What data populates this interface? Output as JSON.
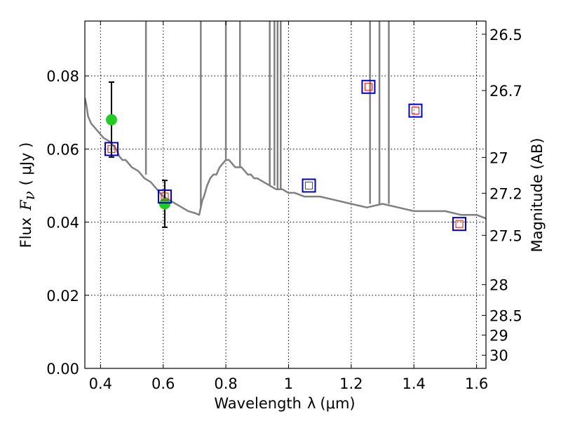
{
  "chart_data": {
    "type": "scatter",
    "xlabel_prefix": "Wavelength",
    "xlabel_symbol": "λ",
    "xlabel_units": "(μm)",
    "ylabel_prefix": "Flux",
    "ylabel_symbol": "F",
    "ylabel_subscript": "ν",
    "ylabel_units": "( μJy )",
    "y2label": "Magnitude (AB)",
    "xlim": [
      0.35,
      1.63
    ],
    "ylim": [
      0.0,
      0.095
    ],
    "grid": true,
    "x_ticks": [
      0.4,
      0.6,
      0.8,
      1.0,
      1.2,
      1.4,
      1.6
    ],
    "x_tick_labels": [
      "0.4",
      "0.6",
      "0.8",
      "1",
      "1.2",
      "1.4",
      "1.6"
    ],
    "y_ticks": [
      0.0,
      0.02,
      0.04,
      0.06,
      0.08
    ],
    "y_tick_labels": [
      "0.00",
      "0.02",
      "0.04",
      "0.06",
      "0.08"
    ],
    "y2_ticks": [
      {
        "label": "26.5",
        "flux": 0.0914
      },
      {
        "label": "26.7",
        "flux": 0.076
      },
      {
        "label": "27",
        "flux": 0.0577
      },
      {
        "label": "27.2",
        "flux": 0.0479
      },
      {
        "label": "27.5",
        "flux": 0.0364
      },
      {
        "label": "28",
        "flux": 0.0229
      },
      {
        "label": "28.5",
        "flux": 0.0145
      },
      {
        "label": "29",
        "flux": 0.0091
      },
      {
        "label": "30",
        "flux": 0.0036
      }
    ],
    "colors": {
      "model": "#808080",
      "observed": "#22cc22",
      "model_photometry": "#0000cc",
      "model_photometry_inner": "#ff0000",
      "errorbar": "#000000",
      "grid": "#000000"
    },
    "model_spectrum": {
      "x": [
        0.35,
        0.355,
        0.36,
        0.365,
        0.37,
        0.38,
        0.39,
        0.4,
        0.41,
        0.42,
        0.43,
        0.44,
        0.45,
        0.46,
        0.47,
        0.48,
        0.49,
        0.5,
        0.52,
        0.54,
        0.56,
        0.58,
        0.6,
        0.62,
        0.64,
        0.66,
        0.68,
        0.7,
        0.715,
        0.72,
        0.725,
        0.73,
        0.74,
        0.75,
        0.76,
        0.77,
        0.78,
        0.79,
        0.8,
        0.81,
        0.82,
        0.83,
        0.84,
        0.85,
        0.86,
        0.87,
        0.88,
        0.89,
        0.9,
        0.92,
        0.94,
        0.96,
        0.98,
        1.0,
        1.02,
        1.05,
        1.1,
        1.15,
        1.2,
        1.25,
        1.3,
        1.35,
        1.4,
        1.45,
        1.5,
        1.55,
        1.6,
        1.63
      ],
      "y": [
        0.074,
        0.072,
        0.069,
        0.068,
        0.067,
        0.066,
        0.065,
        0.064,
        0.063,
        0.0625,
        0.062,
        0.061,
        0.06,
        0.058,
        0.057,
        0.057,
        0.056,
        0.055,
        0.054,
        0.052,
        0.051,
        0.049,
        0.047,
        0.046,
        0.045,
        0.044,
        0.043,
        0.0425,
        0.042,
        0.044,
        0.046,
        0.047,
        0.05,
        0.052,
        0.053,
        0.053,
        0.055,
        0.056,
        0.057,
        0.057,
        0.056,
        0.055,
        0.055,
        0.055,
        0.054,
        0.053,
        0.053,
        0.052,
        0.052,
        0.051,
        0.05,
        0.049,
        0.049,
        0.048,
        0.048,
        0.047,
        0.047,
        0.046,
        0.045,
        0.044,
        0.045,
        0.044,
        0.043,
        0.043,
        0.043,
        0.042,
        0.042,
        0.041
      ]
    },
    "spikes": [
      {
        "x": 0.545,
        "base": 0.053
      },
      {
        "x": 0.72,
        "base": 0.044
      },
      {
        "x": 0.8,
        "base": 0.057
      },
      {
        "x": 0.845,
        "base": 0.055
      },
      {
        "x": 0.94,
        "base": 0.05
      },
      {
        "x": 0.955,
        "base": 0.05
      },
      {
        "x": 0.965,
        "base": 0.049
      },
      {
        "x": 0.975,
        "base": 0.049
      },
      {
        "x": 1.26,
        "base": 0.045
      },
      {
        "x": 1.29,
        "base": 0.045
      },
      {
        "x": 1.32,
        "base": 0.045
      }
    ],
    "observed": [
      {
        "x": 0.435,
        "y": 0.068,
        "err_low": 0.0578,
        "err_high": 0.0783
      },
      {
        "x": 0.605,
        "y": 0.045,
        "err_low": 0.0386,
        "err_high": 0.0514
      }
    ],
    "model_photometry": [
      {
        "x": 0.435,
        "y": 0.06
      },
      {
        "x": 0.605,
        "y": 0.047
      },
      {
        "x": 1.065,
        "y": 0.05
      },
      {
        "x": 1.255,
        "y": 0.077
      },
      {
        "x": 1.405,
        "y": 0.0705
      },
      {
        "x": 1.545,
        "y": 0.0395
      }
    ]
  }
}
